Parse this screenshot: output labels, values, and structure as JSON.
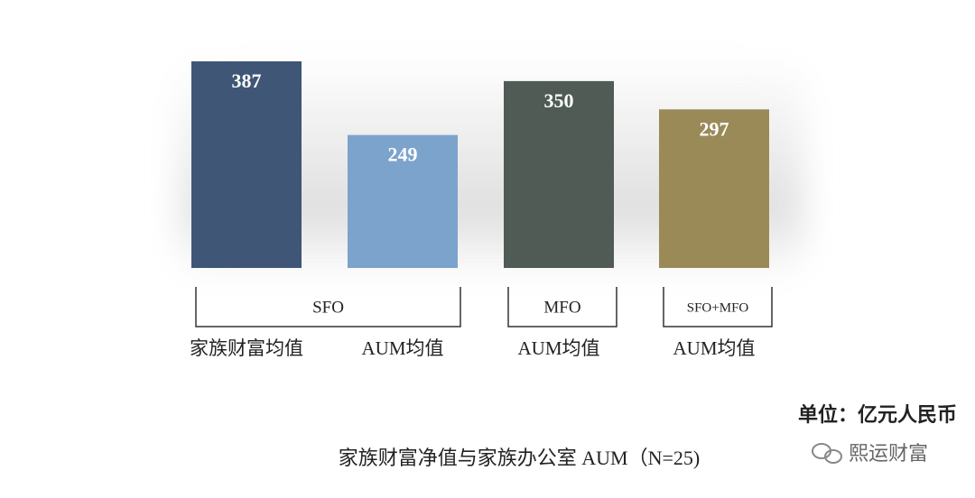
{
  "chart_data": {
    "type": "bar",
    "categories": [
      "家族财富均值",
      "AUM均值",
      "AUM均值",
      "AUM均值"
    ],
    "values": [
      387,
      249,
      350,
      297
    ],
    "value_labels": [
      "387",
      "249",
      "350",
      "297"
    ],
    "colors": [
      "#3f5676",
      "#7ba3cc",
      "#4f5b54",
      "#9a8a58"
    ],
    "groups": [
      {
        "name": "SFO",
        "count": 2
      },
      {
        "name": "MFO",
        "count": 1
      },
      {
        "name": "SFO+MFO",
        "count": 1
      }
    ],
    "unit": "单位：亿元人民币",
    "title": "家族财富净值与家族办公室 AUM（N=25)",
    "watermark": "熙运财富"
  }
}
